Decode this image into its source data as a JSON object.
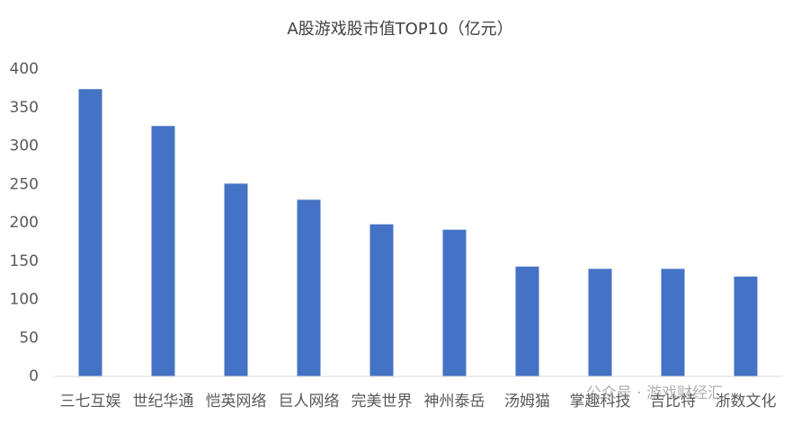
{
  "chart_data": {
    "type": "bar",
    "title": "A股游戏股市值TOP10（亿元）",
    "categories": [
      "三七互娱",
      "世纪华通",
      "恺英网络",
      "巨人网络",
      "完美世界",
      "神州泰岳",
      "汤姆猫",
      "掌趣科技",
      "吉比特",
      "浙数文化"
    ],
    "values": [
      374,
      326,
      251,
      230,
      198,
      191,
      143,
      140,
      140,
      130
    ],
    "color": "#4472c4",
    "ylim": [
      0,
      400
    ],
    "yticks": [
      0,
      50,
      100,
      150,
      200,
      250,
      300,
      350,
      400
    ],
    "grid": false
  },
  "watermark": "公众号 · 游戏财经汇"
}
